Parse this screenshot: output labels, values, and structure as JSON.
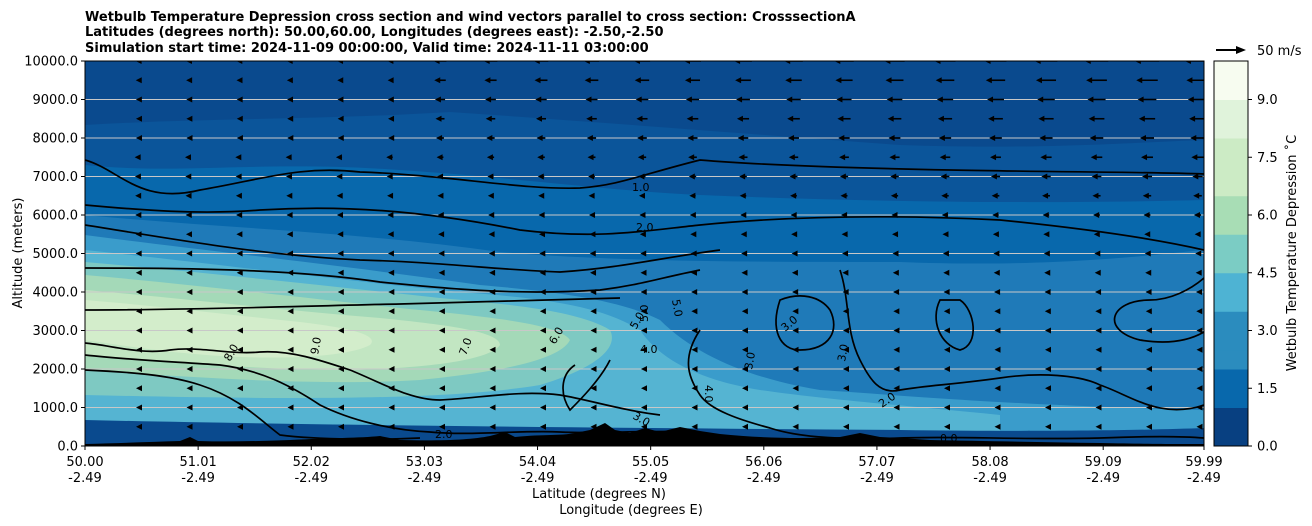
{
  "chart_data": {
    "type": "contourf",
    "title_lines": [
      "Wetbulb Temperature Depression cross section and wind vectors parallel to cross section: CrosssectionA",
      "Latitudes (degrees north): 50.00,60.00, Longitudes (degrees east): -2.50,-2.50",
      "Simulation start time: 2024-11-09 00:00:00, Valid time: 2024-11-11 03:00:00"
    ],
    "xlabel": "Latitude (degrees N)",
    "xlabel2": "Longitude (degrees E)",
    "ylabel": "Altitude (meters)",
    "x_ticks_lat": [
      "50.00",
      "51.01",
      "52.02",
      "53.03",
      "54.04",
      "55.05",
      "56.06",
      "57.07",
      "58.08",
      "59.09",
      "59.99"
    ],
    "x_ticks_lon": [
      "-2.49",
      "-2.49",
      "-2.49",
      "-2.49",
      "-2.49",
      "-2.49",
      "-2.49",
      "-2.49",
      "-2.49",
      "-2.49",
      "-2.49"
    ],
    "x_tick_values": [
      50.0,
      51.01,
      52.02,
      53.03,
      54.04,
      55.05,
      56.06,
      57.07,
      58.08,
      59.09,
      59.99
    ],
    "xlim": [
      50.0,
      59.99
    ],
    "y_ticks": [
      "0.0",
      "1000.0",
      "2000.0",
      "3000.0",
      "4000.0",
      "5000.0",
      "6000.0",
      "7000.0",
      "8000.0",
      "9000.0",
      "10000.0"
    ],
    "y_tick_values": [
      0,
      1000,
      2000,
      3000,
      4000,
      5000,
      6000,
      7000,
      8000,
      9000,
      10000
    ],
    "ylim": [
      0,
      10000
    ],
    "grid": "horizontal",
    "colorbar": {
      "label": "Wetbulb Temperature Depression $^\\circ$C",
      "label_display": "Wetbulb Temperature Depression ˚C",
      "ticks": [
        "0.0",
        "1.5",
        "3.0",
        "4.5",
        "6.0",
        "7.5",
        "9.0"
      ],
      "tick_values": [
        0,
        1.5,
        3.0,
        4.5,
        6.0,
        7.5,
        9.0
      ],
      "range": [
        0,
        10
      ],
      "colormap": "GnBu_r",
      "colors": [
        "#084081",
        "#0868ac",
        "#2b8cbe",
        "#4eb3d3",
        "#7bccc4",
        "#a8ddb5",
        "#ccebc5",
        "#e0f3db",
        "#f7fcf0"
      ]
    },
    "contour_labels": [
      "1.0",
      "2.0",
      "3.0",
      "4.0",
      "5.0",
      "6.0",
      "7.0",
      "8.0",
      "9.0",
      "0.0"
    ],
    "quiver_key": {
      "label": "50 m/s",
      "speed": 50
    },
    "wind_direction": "southward (negative along section)"
  }
}
